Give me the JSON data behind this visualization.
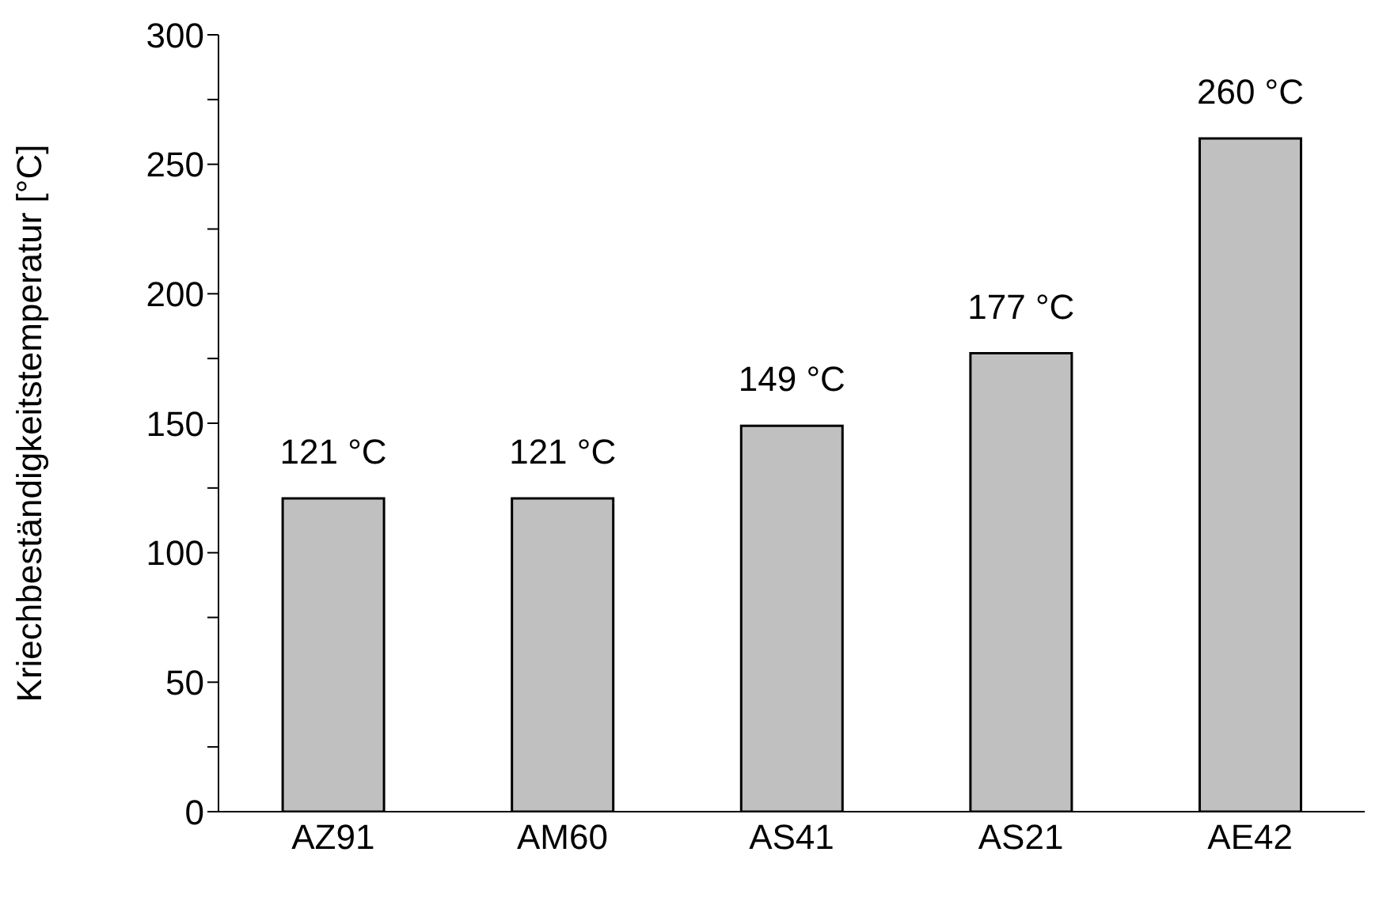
{
  "chart_data": {
    "type": "bar",
    "ylabel": "Kriechbeständigkeitstemperatur [°C]",
    "categories": [
      "AZ91",
      "AM60",
      "AS41",
      "AS21",
      "AE42"
    ],
    "values": [
      121,
      121,
      149,
      177,
      260
    ],
    "value_labels": [
      "121 °C",
      "121 °C",
      "149 °C",
      "177 °C",
      "260 °C"
    ],
    "color": "#c0c0c0",
    "ylim": [
      0,
      300
    ],
    "yticks": [
      0,
      {
        "value": 25,
        "label": null
      },
      50,
      {
        "value": 75,
        "label": null
      },
      100,
      {
        "value": 125,
        "label": null
      },
      150,
      {
        "value": 175,
        "label": null
      },
      200,
      {
        "value": 225,
        "label": null
      },
      250,
      {
        "value": 275,
        "label": null
      },
      300
    ],
    "grid": false,
    "legend": false
  }
}
